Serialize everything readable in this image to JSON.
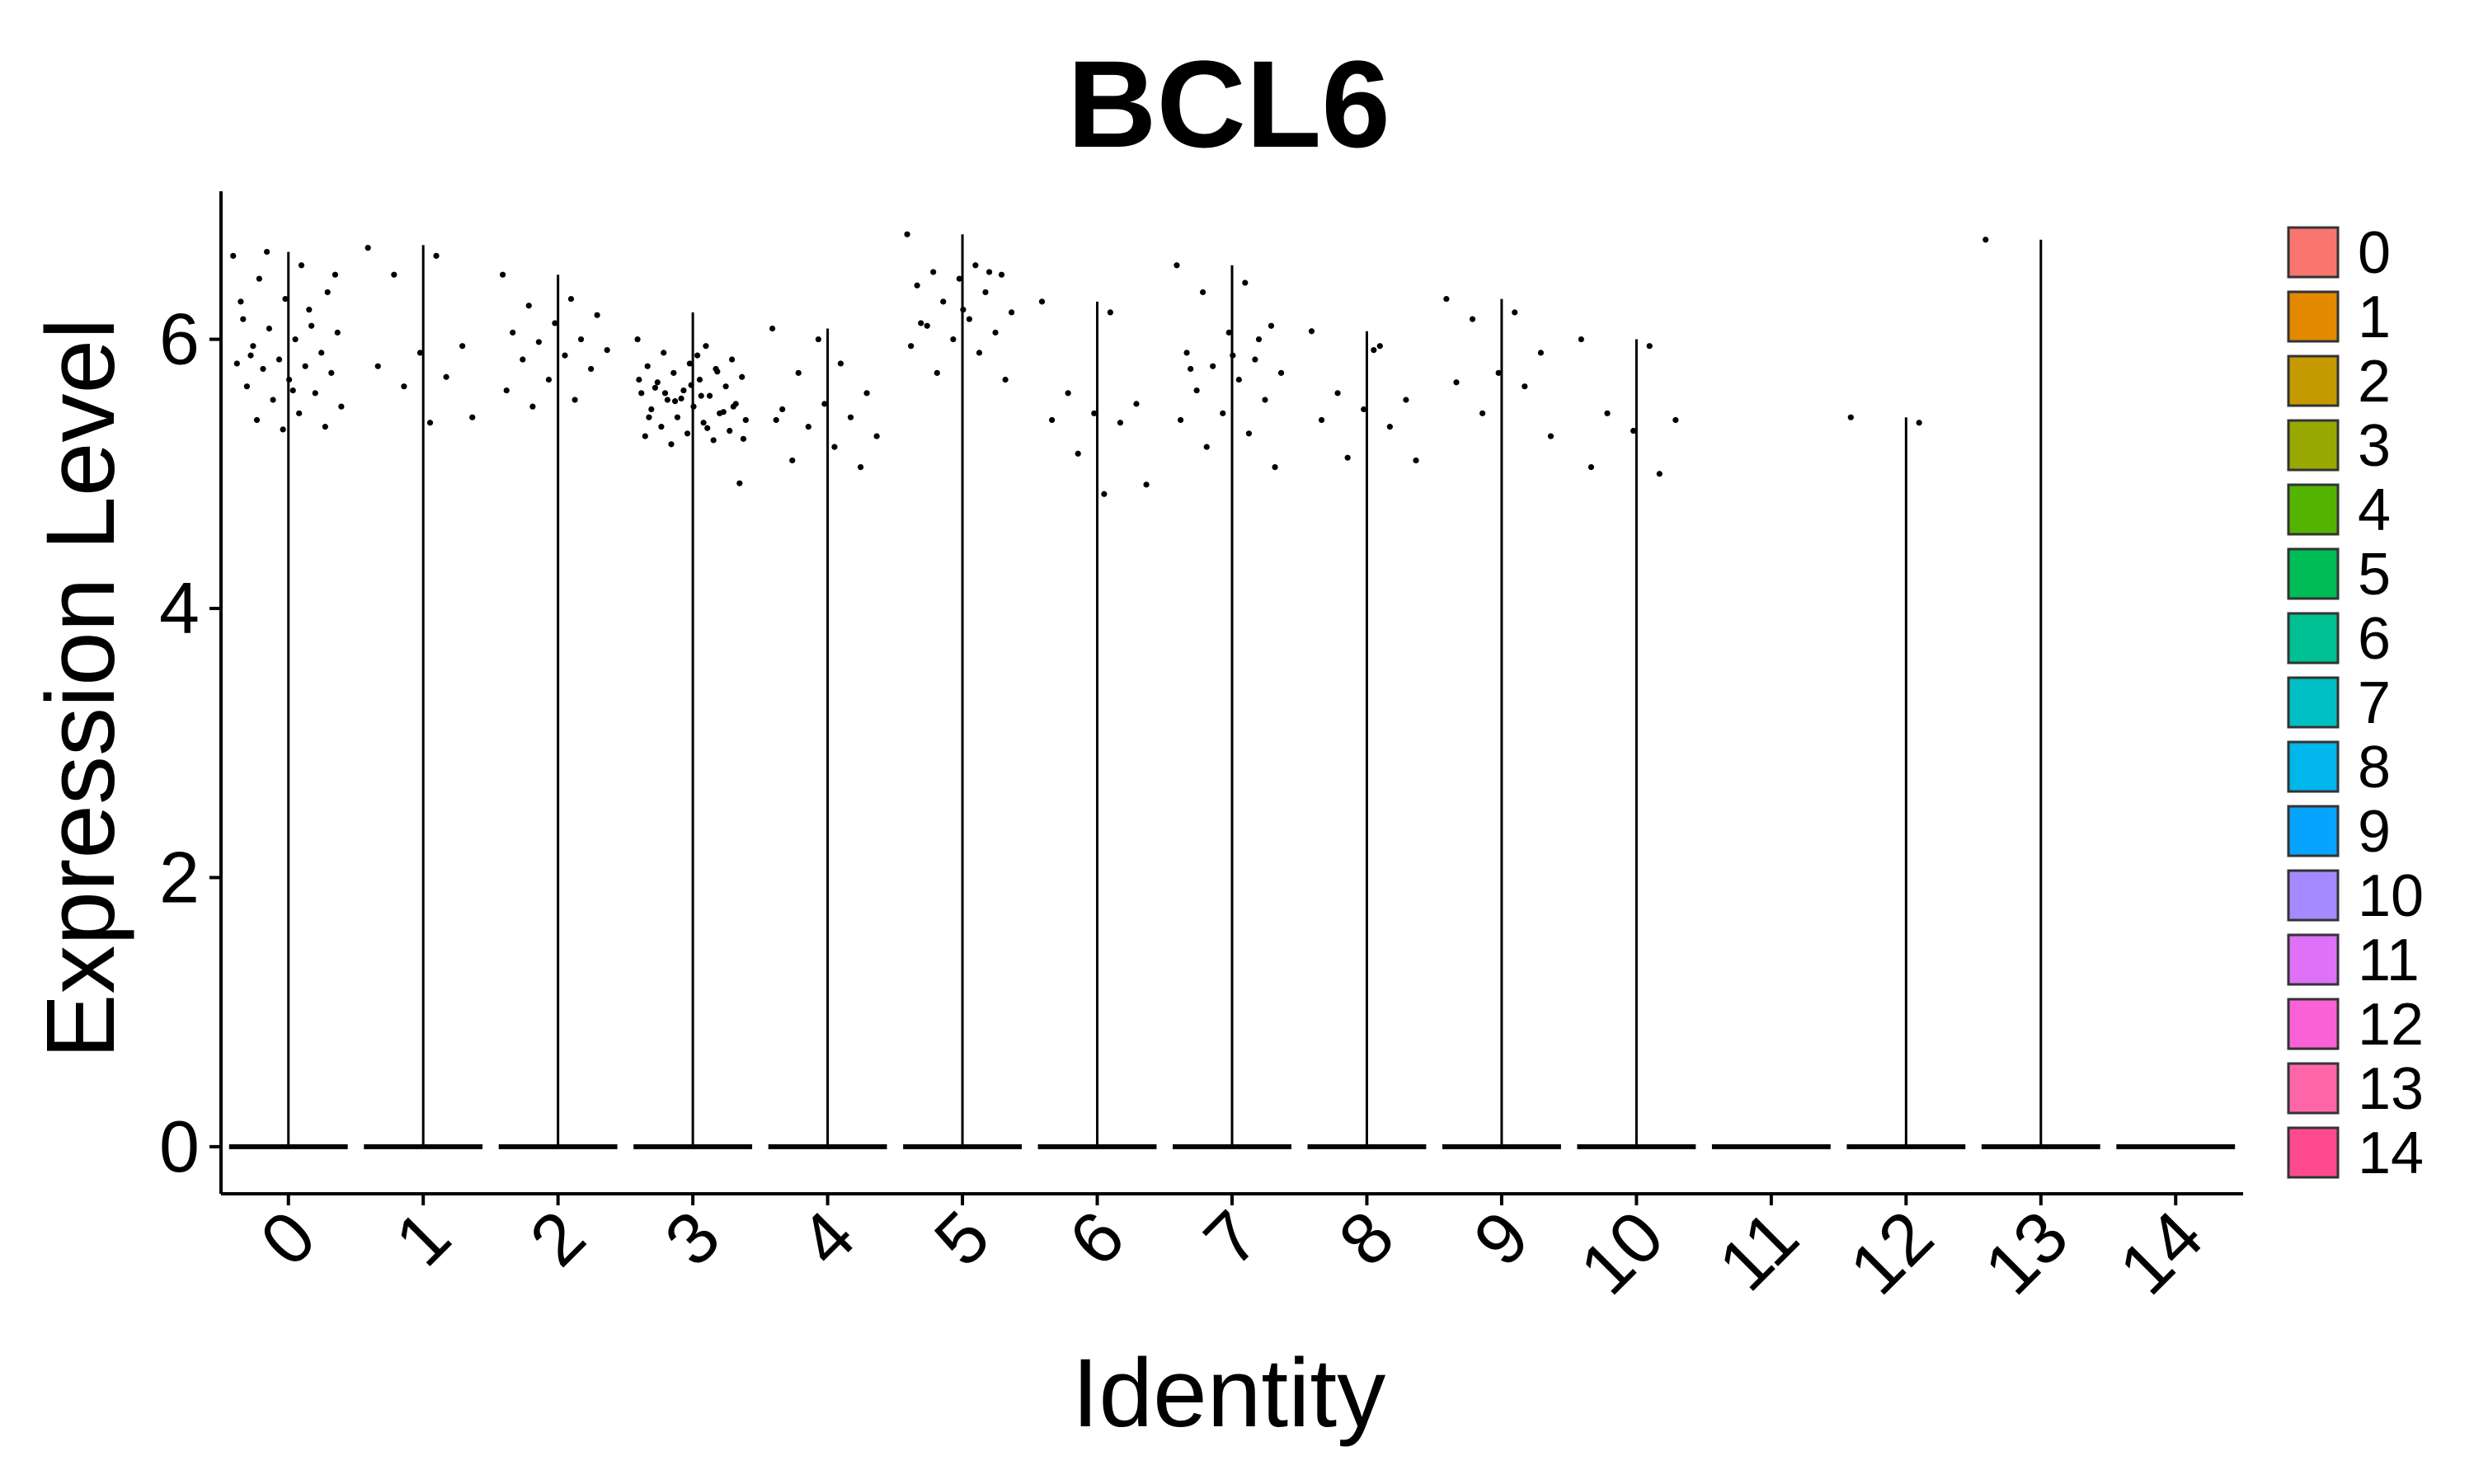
{
  "chart_data": {
    "type": "violin",
    "title": "BCL6",
    "xlabel": "Identity",
    "ylabel": "Expression Level",
    "categories": [
      "0",
      "1",
      "2",
      "3",
      "4",
      "5",
      "6",
      "7",
      "8",
      "9",
      "10",
      "11",
      "12",
      "13",
      "14"
    ],
    "ylim": [
      -0.35,
      7.1
    ],
    "yticks": [
      0,
      2,
      4,
      6
    ],
    "grid": false,
    "legend_position": "right",
    "colors": [
      "#F8766D",
      "#E38900",
      "#C49A00",
      "#99A800",
      "#53B400",
      "#00BC56",
      "#00C094",
      "#00BFC4",
      "#00B6EB",
      "#06A4FF",
      "#A58AFF",
      "#DF70F8",
      "#FB61D7",
      "#FF66A8",
      "#FF4A8F"
    ],
    "legend": [
      "0",
      "1",
      "2",
      "3",
      "4",
      "5",
      "6",
      "7",
      "8",
      "9",
      "10",
      "11",
      "12",
      "13",
      "14"
    ],
    "violin_max": [
      6.65,
      6.7,
      6.48,
      6.2,
      6.08,
      6.78,
      6.28,
      6.55,
      6.06,
      6.3,
      6.0,
      0,
      5.42,
      6.74,
      0
    ],
    "baseline_value": 0,
    "points": [
      [
        6.62,
        6.55,
        6.45,
        6.35,
        6.3,
        6.15,
        6.1,
        6.08,
        6.05,
        6.0,
        5.95,
        5.9,
        5.85,
        5.82,
        5.8,
        5.78,
        5.75,
        5.7,
        5.65,
        5.6,
        5.55,
        5.5,
        5.45,
        5.4,
        5.35,
        5.33,
        6.28,
        6.22,
        6.65,
        6.48,
        5.62,
        5.88
      ],
      [
        6.68,
        6.62,
        6.48,
        5.95,
        5.9,
        5.8,
        5.72,
        5.65,
        5.42,
        5.38
      ],
      [
        6.48,
        6.3,
        6.25,
        6.18,
        6.12,
        6.05,
        6.0,
        5.98,
        5.92,
        5.88,
        5.85,
        5.78,
        5.7,
        5.62,
        5.55,
        5.5
      ],
      [
        6.0,
        5.95,
        5.9,
        5.85,
        5.82,
        5.8,
        5.78,
        5.75,
        5.72,
        5.7,
        5.68,
        5.65,
        5.62,
        5.6,
        5.58,
        5.55,
        5.52,
        5.5,
        5.48,
        5.45,
        5.42,
        5.4,
        5.38,
        5.35,
        5.32,
        5.3,
        5.28,
        5.25,
        5.22,
        4.93,
        5.88,
        5.64,
        5.46,
        5.56,
        5.7,
        5.34,
        5.6,
        5.5,
        5.66,
        5.42,
        5.76,
        5.54,
        5.26,
        5.58
      ],
      [
        6.08,
        5.82,
        5.75,
        5.6,
        5.52,
        5.48,
        5.42,
        5.35,
        5.28,
        5.2,
        5.1,
        5.05,
        6.0,
        5.4
      ],
      [
        6.78,
        6.55,
        6.5,
        6.48,
        6.45,
        6.4,
        6.35,
        6.28,
        6.2,
        6.15,
        6.1,
        6.05,
        6.0,
        5.95,
        5.9,
        5.75,
        5.7,
        6.22,
        6.12,
        6.5
      ],
      [
        6.28,
        6.2,
        5.6,
        5.52,
        5.45,
        5.4,
        5.38,
        5.15,
        4.92,
        4.85
      ],
      [
        6.55,
        6.42,
        6.35,
        6.1,
        6.05,
        5.9,
        5.85,
        5.8,
        5.75,
        5.7,
        5.62,
        5.55,
        5.45,
        5.4,
        5.3,
        5.2,
        5.05,
        5.88,
        5.78,
        6.0
      ],
      [
        6.06,
        5.95,
        5.6,
        5.55,
        5.48,
        5.4,
        5.35,
        5.12,
        5.1,
        5.92
      ],
      [
        6.3,
        6.2,
        6.15,
        5.9,
        5.75,
        5.68,
        5.65,
        5.45,
        5.28
      ],
      [
        6.0,
        5.95,
        5.45,
        5.4,
        5.32,
        5.05,
        5.0
      ],
      [],
      [
        5.42,
        5.38
      ],
      [
        6.74
      ],
      []
    ]
  }
}
